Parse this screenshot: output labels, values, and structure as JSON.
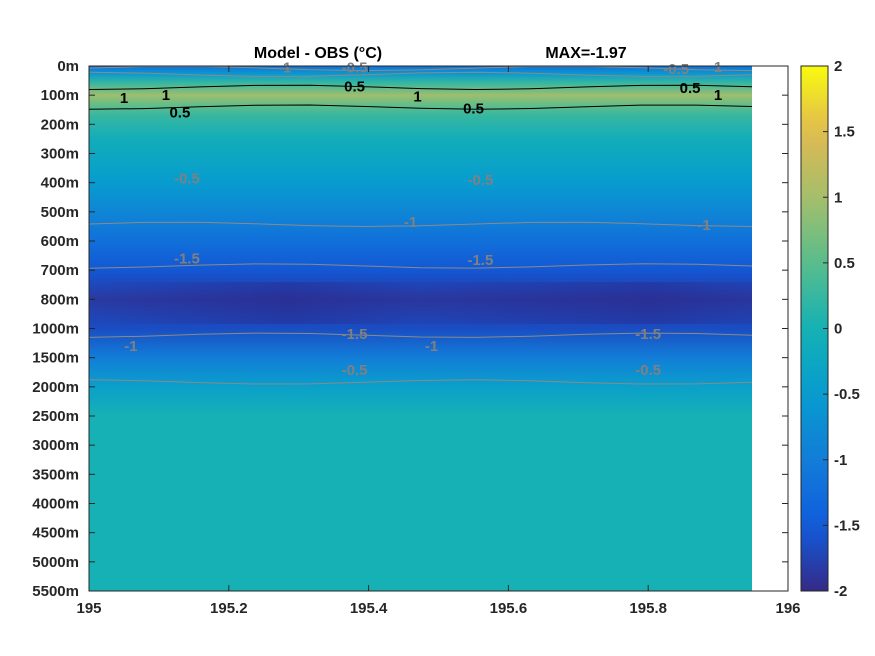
{
  "chart_data": {
    "type": "heatmap",
    "title": "Model - OBS (°C)",
    "title_annotation": "MAX=-1.97",
    "colormap": "parula",
    "x": {
      "range": [
        195,
        196
      ],
      "ticks": [
        195,
        195.2,
        195.4,
        195.6,
        195.8,
        196
      ],
      "tick_labels": [
        "195",
        "195.2",
        "195.4",
        "195.6",
        "195.8",
        "196"
      ],
      "data_extent": [
        195,
        195.95
      ]
    },
    "y": {
      "reversed": true,
      "tick_labels": [
        "0m",
        "100m",
        "200m",
        "300m",
        "400m",
        "500m",
        "600m",
        "700m",
        "800m",
        "1000m",
        "1500m",
        "2000m",
        "2500m",
        "3000m",
        "3500m",
        "4000m",
        "4500m",
        "5000m",
        "5500m"
      ],
      "depths": [
        0,
        100,
        200,
        300,
        400,
        500,
        600,
        700,
        800,
        1000,
        1500,
        2000,
        2500,
        3000,
        3500,
        4000,
        4500,
        5000,
        5500
      ]
    },
    "colorbar": {
      "range": [
        -2,
        2
      ],
      "ticks": [
        2,
        1.5,
        1,
        0.5,
        0,
        -0.5,
        -1,
        -1.5,
        -2
      ],
      "tick_labels": [
        "2",
        "1.5",
        "1",
        "0.5",
        "0",
        "-0.5",
        "-1",
        "-1.5",
        "-2"
      ]
    },
    "depth_profile": [
      {
        "depth": 0,
        "value": -1.2
      },
      {
        "depth": 25,
        "value": -0.6
      },
      {
        "depth": 55,
        "value": 0.2
      },
      {
        "depth": 100,
        "value": 0.95
      },
      {
        "depth": 135,
        "value": 0.55
      },
      {
        "depth": 170,
        "value": 0.25
      },
      {
        "depth": 250,
        "value": -0.1
      },
      {
        "depth": 400,
        "value": -0.5
      },
      {
        "depth": 500,
        "value": -0.85
      },
      {
        "depth": 600,
        "value": -1.2
      },
      {
        "depth": 700,
        "value": -1.55
      },
      {
        "depth": 800,
        "value": -1.85
      },
      {
        "depth": 1000,
        "value": -1.65
      },
      {
        "depth": 1500,
        "value": -1.0
      },
      {
        "depth": 2000,
        "value": -0.4
      },
      {
        "depth": 2500,
        "value": 0.0
      },
      {
        "depth": 5500,
        "value": 0.0
      }
    ],
    "contour_labels": [
      {
        "text": "-1",
        "x": 195.28,
        "depth": 5,
        "color": "#808080"
      },
      {
        "text": "-0.5",
        "x": 195.38,
        "depth": 5,
        "color": "#808080"
      },
      {
        "text": "0.5",
        "x": 195.38,
        "depth": 70,
        "color": "#000000"
      },
      {
        "text": "-0.5",
        "x": 195.84,
        "depth": 10,
        "color": "#808080"
      },
      {
        "text": "1",
        "x": 195.9,
        "depth": 3,
        "color": "#808080"
      },
      {
        "text": "0.5",
        "x": 195.86,
        "depth": 75,
        "color": "#000000"
      },
      {
        "text": "1",
        "x": 195.9,
        "depth": 100,
        "color": "#000000"
      },
      {
        "text": "1",
        "x": 195.05,
        "depth": 110,
        "color": "#000000"
      },
      {
        "text": "1",
        "x": 195.11,
        "depth": 100,
        "color": "#000000"
      },
      {
        "text": "1",
        "x": 195.47,
        "depth": 105,
        "color": "#000000"
      },
      {
        "text": "0.5",
        "x": 195.13,
        "depth": 160,
        "color": "#000000"
      },
      {
        "text": "0.5",
        "x": 195.55,
        "depth": 145,
        "color": "#000000"
      },
      {
        "text": "-0.5",
        "x": 195.14,
        "depth": 385,
        "color": "#808080"
      },
      {
        "text": "-0.5",
        "x": 195.56,
        "depth": 390,
        "color": "#808080"
      },
      {
        "text": "-1",
        "x": 195.46,
        "depth": 535,
        "color": "#808080"
      },
      {
        "text": "-1",
        "x": 195.88,
        "depth": 545,
        "color": "#808080"
      },
      {
        "text": "-1.5",
        "x": 195.14,
        "depth": 660,
        "color": "#808080"
      },
      {
        "text": "-1.5",
        "x": 195.56,
        "depth": 665,
        "color": "#808080"
      },
      {
        "text": "-1.5",
        "x": 195.38,
        "depth": 1095,
        "color": "#808080"
      },
      {
        "text": "-1.5",
        "x": 195.8,
        "depth": 1095,
        "color": "#808080"
      },
      {
        "text": "-1",
        "x": 195.06,
        "depth": 1300,
        "color": "#808080"
      },
      {
        "text": "-1",
        "x": 195.49,
        "depth": 1300,
        "color": "#808080"
      },
      {
        "text": "-0.5",
        "x": 195.38,
        "depth": 1715,
        "color": "#808080"
      },
      {
        "text": "-0.5",
        "x": 195.8,
        "depth": 1715,
        "color": "#808080"
      }
    ]
  }
}
